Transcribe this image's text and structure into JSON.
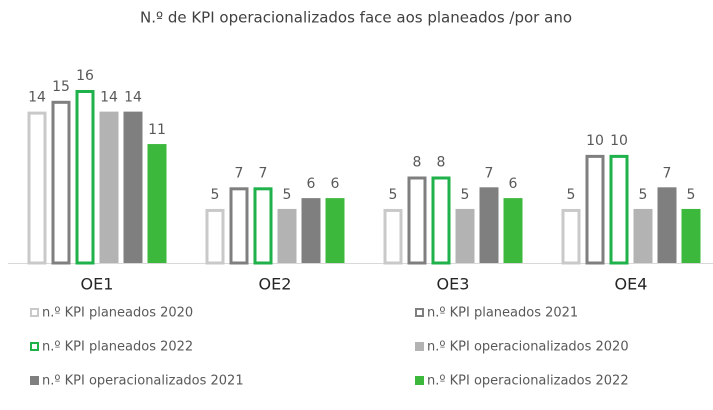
{
  "chart_data": {
    "type": "bar",
    "title": "N.º de KPI operacionalizados face aos planeados /por ano",
    "categories": [
      "OE1",
      "OE2",
      "OE3",
      "OE4"
    ],
    "series": [
      {
        "name": "n.º KPI planeados  2020",
        "color": "#c9c9c9",
        "style": "outline",
        "values": [
          14,
          5,
          5,
          5
        ]
      },
      {
        "name": "n.º KPI planeados 2021",
        "color": "#7f7f7f",
        "style": "outline",
        "values": [
          15,
          7,
          8,
          10
        ]
      },
      {
        "name": "n.º KPI planeados 2022",
        "color": "#1fb14a",
        "style": "outline",
        "values": [
          16,
          7,
          8,
          10
        ]
      },
      {
        "name": "n.º KPI operacionalizados 2020",
        "color": "#b3b3b3",
        "style": "filled",
        "values": [
          14,
          5,
          5,
          5
        ]
      },
      {
        "name": "n.º KPI operacionalizados 2021",
        "color": "#7f7f7f",
        "style": "filled",
        "values": [
          14,
          6,
          7,
          7
        ]
      },
      {
        "name": "n.º KPI operacionalizados 2022",
        "color": "#3cb83c",
        "style": "filled",
        "values": [
          11,
          6,
          6,
          5
        ]
      }
    ]
  }
}
